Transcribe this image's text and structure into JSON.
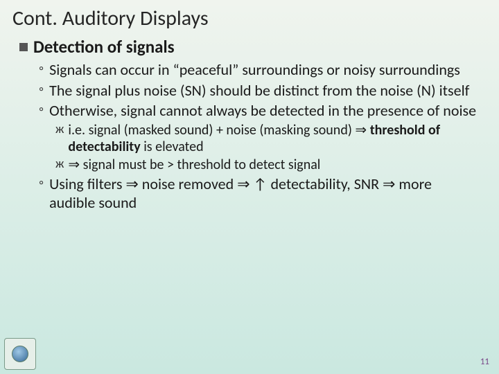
{
  "slide": {
    "title": "Cont. Auditory Displays",
    "heading": "Detection of signals",
    "bullets_level2": [
      "Signals can occur in “peaceful” surroundings or noisy surroundings",
      "The signal plus noise (SN) should be distinct from the noise (N) itself",
      "Otherwise, signal cannot always be detected in the presence of noise"
    ],
    "bullets_level3_a_pre": "i.e. signal (masked sound) + noise (masking sound) ⇒ ",
    "bullets_level3_a_bold": "threshold of detectability",
    "bullets_level3_a_post": " is elevated",
    "bullets_level3_b": "⇒ signal must be > threshold to detect signal",
    "bullets_level2_last": "Using filters ⇒ noise removed ⇒ ↑ detectability, SNR ⇒ more audible sound",
    "page_number": "11"
  },
  "style": {
    "background_gradient_top": "#f0f4ee",
    "background_gradient_bottom": "#cae8e0",
    "title_fontsize_pt": 30,
    "h1_fontsize_pt": 25,
    "h2_fontsize_pt": 22,
    "h3_fontsize_pt": 20,
    "text_color": "#1a1a1a",
    "pagenum_color": "#7a4a8a",
    "h1_bullet_glyph": "▪",
    "h2_bullet_glyph": "◦",
    "h3_bullet_glyph": "ж"
  }
}
